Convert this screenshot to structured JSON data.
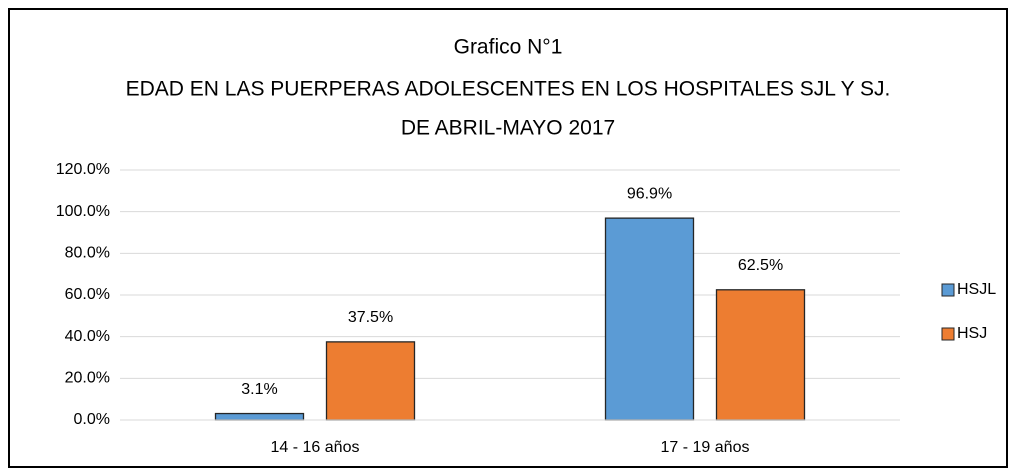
{
  "chart_data": {
    "type": "bar",
    "title": [
      "Grafico N°1",
      "EDAD EN LAS PUERPERAS ADOLESCENTES EN LOS HOSPITALES SJL Y SJ.",
      "DE ABRIL-MAYO 2017"
    ],
    "categories": [
      "14 - 16 años",
      "17 - 19 años"
    ],
    "series": [
      {
        "name": "HSJL",
        "color": "#5b9bd5",
        "values": [
          3.1,
          96.9
        ],
        "value_labels": [
          "3.1%",
          "96.9%"
        ]
      },
      {
        "name": "HSJ",
        "color": "#ed7d31",
        "values": [
          37.5,
          62.5
        ],
        "value_labels": [
          "37.5%",
          "62.5%"
        ]
      }
    ],
    "ylim": [
      0,
      120
    ],
    "yticks": [
      {
        "value": 0,
        "label": "0.0%"
      },
      {
        "value": 20,
        "label": "20.0%"
      },
      {
        "value": 40,
        "label": "40.0%"
      },
      {
        "value": 60,
        "label": "60.0%"
      },
      {
        "value": 80,
        "label": "80.0%"
      },
      {
        "value": 100,
        "label": "100.0%"
      },
      {
        "value": 120,
        "label": "120.0%"
      }
    ],
    "grid": true,
    "legend": "right"
  }
}
